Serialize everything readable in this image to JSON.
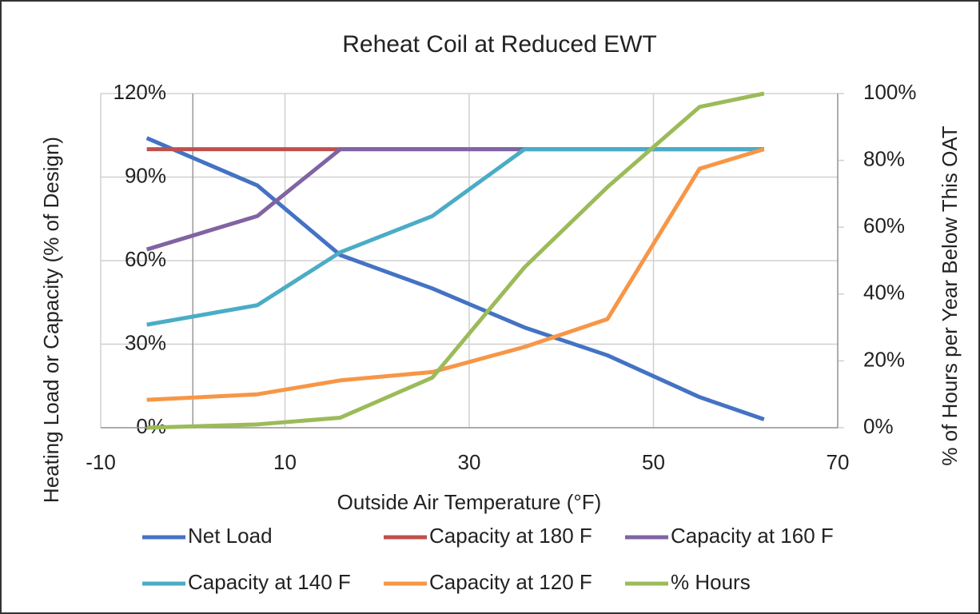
{
  "chart_data": {
    "type": "line",
    "title": "Reheat Coil at Reduced EWT",
    "x_label": "Outside Air Temperature (°F)",
    "y_label": "Heating Load or Capacity (% of Design)",
    "y2_label": "% of Hours per Year Below This OAT",
    "x": [
      -5,
      7,
      16,
      26,
      36,
      45,
      55,
      62
    ],
    "xlim": [
      -10,
      70
    ],
    "xticks": [
      -10,
      10,
      30,
      50,
      70
    ],
    "ylim": [
      0,
      120
    ],
    "yticks": [
      {
        "value": 0,
        "label": "0%"
      },
      {
        "value": 30,
        "label": "30%"
      },
      {
        "value": 60,
        "label": "60%"
      },
      {
        "value": 90,
        "label": "90%"
      },
      {
        "value": 120,
        "label": "120%"
      }
    ],
    "y2lim": [
      0,
      100
    ],
    "y2ticks": [
      {
        "value": 0,
        "label": "0%"
      },
      {
        "value": 20,
        "label": "20%"
      },
      {
        "value": 40,
        "label": "40%"
      },
      {
        "value": 60,
        "label": "60%"
      },
      {
        "value": 80,
        "label": "80%"
      },
      {
        "value": 100,
        "label": "100%"
      }
    ],
    "grid": true,
    "legend": "bottom",
    "series": [
      {
        "name": "Net Load",
        "color": "#4472c4",
        "values": [
          104,
          87,
          62,
          50,
          36,
          26,
          11,
          3
        ]
      },
      {
        "name": "Capacity at 180 F",
        "color": "#c0504d",
        "values": [
          100,
          100,
          100,
          100,
          100,
          100,
          100,
          100
        ]
      },
      {
        "name": "Capacity at 160 F",
        "color": "#8064a2",
        "values": [
          64,
          76,
          100,
          100,
          100,
          100,
          100,
          100
        ]
      },
      {
        "name": "Capacity at 140 F",
        "color": "#4bacc6",
        "values": [
          37,
          44,
          63,
          76,
          100,
          100,
          100,
          100
        ]
      },
      {
        "name": "Capacity at 120 F",
        "color": "#f79646",
        "values": [
          10,
          12,
          17,
          20,
          29,
          39,
          93,
          100
        ]
      },
      {
        "name": "% Hours",
        "color": "#9bbb59",
        "axis": "y2",
        "values": [
          0,
          1,
          3,
          15,
          48,
          72,
          96,
          100
        ]
      }
    ]
  }
}
